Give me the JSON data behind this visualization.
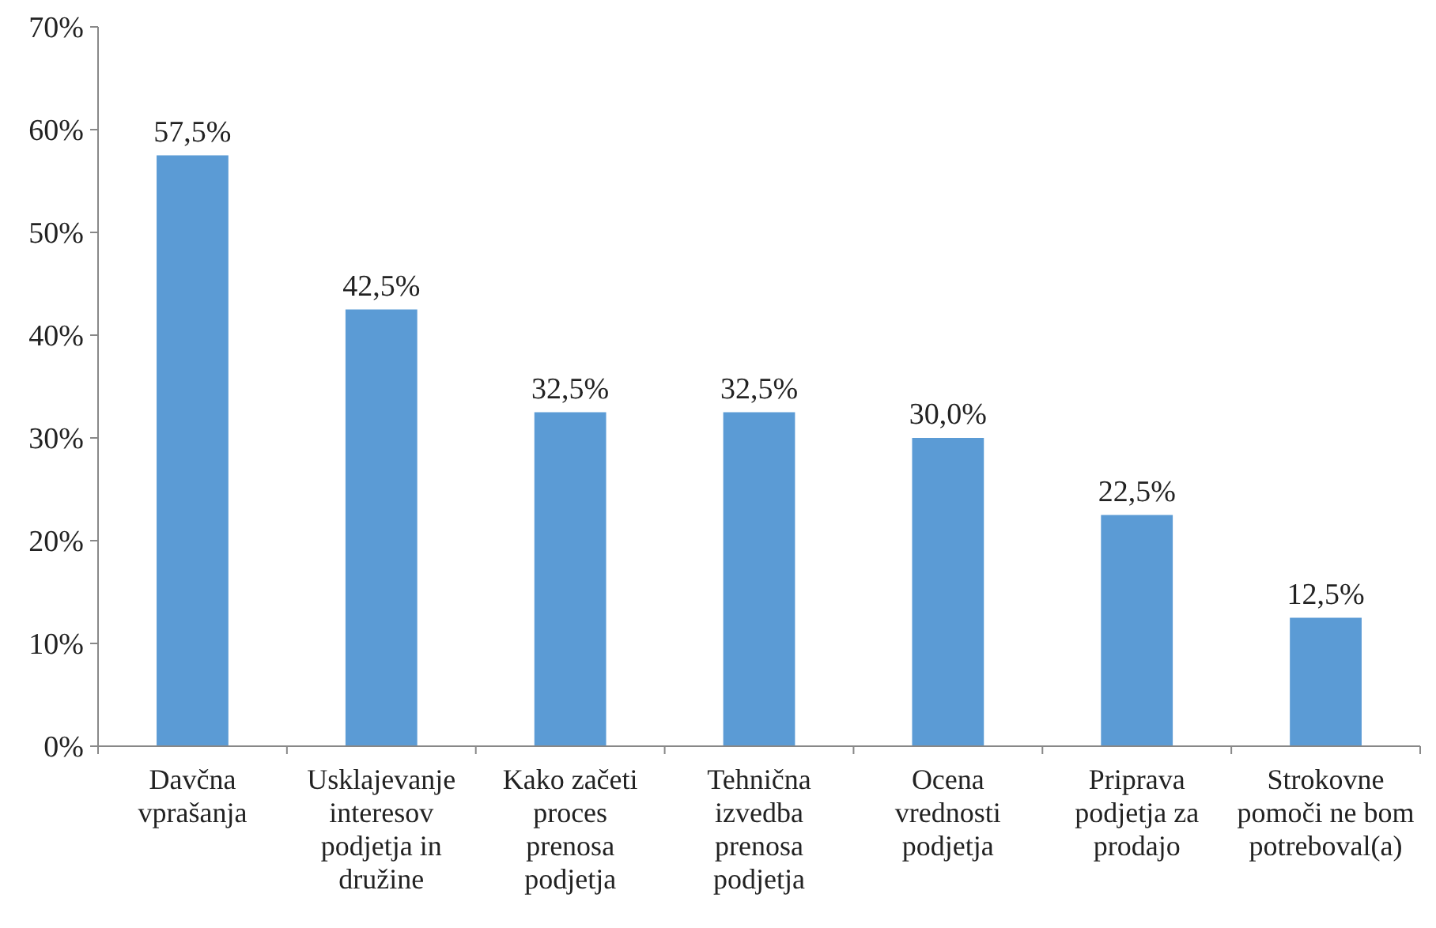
{
  "chart_data": {
    "type": "bar",
    "categories": [
      "Davčna vprašanja",
      "Usklajevanje interesov podjetja in družine",
      "Kako začeti proces prenosa podjetja",
      "Tehnična izvedba prenosa podjetja",
      "Ocena vrednosti podjetja",
      "Priprava podjetja za prodajo",
      "Strokovne pomoči ne bom potreboval(a)"
    ],
    "values": [
      57.5,
      42.5,
      32.5,
      32.5,
      30.0,
      22.5,
      12.5
    ],
    "value_labels": [
      "57,5%",
      "42,5%",
      "32,5%",
      "32,5%",
      "30,0%",
      "22,5%",
      "12,5%"
    ],
    "color": "#5b9bd5",
    "ylim": [
      0,
      70
    ],
    "yticks": [
      {
        "value": 0,
        "label": "0%"
      },
      {
        "value": 10,
        "label": "10%"
      },
      {
        "value": 20,
        "label": "20%"
      },
      {
        "value": 30,
        "label": "30%"
      },
      {
        "value": 40,
        "label": "40%"
      },
      {
        "value": 50,
        "label": "50%"
      },
      {
        "value": 60,
        "label": "60%"
      },
      {
        "value": 70,
        "label": "70%"
      }
    ],
    "grid": false
  }
}
